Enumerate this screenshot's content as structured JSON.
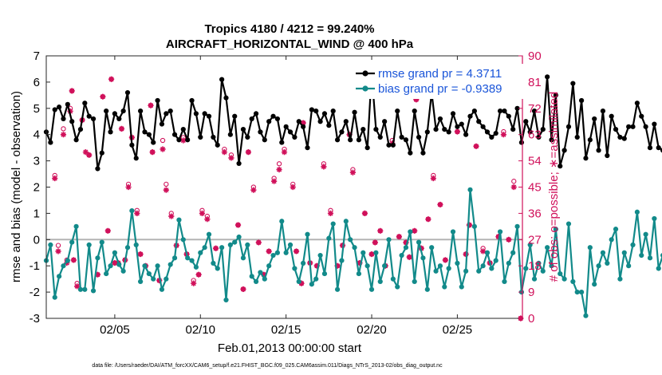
{
  "colors": {
    "rmse": "#000000",
    "bias": "#128a8a",
    "obs": "#d0105a",
    "zero_line": "#b3b3b3",
    "legend_text": "#1a55d9"
  },
  "chart_data": {
    "type": "line",
    "title": "Tropics 4180 / 4212 = 99.240%",
    "subtitle": "AIRCRAFT_HORIZONTAL_WIND @ 400 hPa",
    "xlabel": "Feb.01,2013 00:00:00 start",
    "ylabel_left": "rmse and bias (model - observation)",
    "ylabel_right": "# of obs: o=possible; ∗=assimilated",
    "footer": "data file: /Users/raeder/DAI/ATM_forcXX/CAM6_setup/f.e21.FHIST_BGC.f09_025.CAM6assim.011/Diags_NTrS_2013-02/obs_diag_output.nc",
    "xlim": [
      1,
      28.8
    ],
    "ylim_left": [
      -3,
      7
    ],
    "ylim_right": [
      0,
      90
    ],
    "left_ticks": [
      "-3",
      "-2",
      "-1",
      "0",
      "1",
      "2",
      "3",
      "4",
      "5",
      "6",
      "7"
    ],
    "right_ticks": [
      "0",
      "9",
      "18",
      "27",
      "36",
      "45",
      "54",
      "63",
      "72",
      "81",
      "90"
    ],
    "x_ticks": [
      {
        "value": 5,
        "label": "02/05"
      },
      {
        "value": 10,
        "label": "02/10"
      },
      {
        "value": 15,
        "label": "02/15"
      },
      {
        "value": 20,
        "label": "02/20"
      },
      {
        "value": 25,
        "label": "02/25"
      }
    ],
    "legend": [
      {
        "label": "rmse grand pr = 4.3711",
        "series": "rmse"
      },
      {
        "label": "bias grand pr = -0.9389",
        "series": "bias"
      }
    ],
    "t_start": 1.0,
    "t_step": 0.25,
    "rmse": [
      4.1,
      3.7,
      4.95,
      5.05,
      4.6,
      5.15,
      4.5,
      3.8,
      4.2,
      5.2,
      4.7,
      4.6,
      2.7,
      3.3,
      4.9,
      4.1,
      4.8,
      4.6,
      4.9,
      5.6,
      3.6,
      3.1,
      4.9,
      4.1,
      4.0,
      3.7,
      5.3,
      4.4,
      4.8,
      4.9,
      4.0,
      3.8,
      4.2,
      3.8,
      5.3,
      4.8,
      3.9,
      4.8,
      4.7,
      3.9,
      3.6,
      6.1,
      5.4,
      4.0,
      4.7,
      2.9,
      4.2,
      3.9,
      4.6,
      4.8,
      4.1,
      3.8,
      4.5,
      4.7,
      4.6,
      3.7,
      4.3,
      4.1,
      3.9,
      4.5,
      4.3,
      3.5,
      4.95,
      4.9,
      4.5,
      4.8,
      4.35,
      4.9,
      3.8,
      4.1,
      4.5,
      3.8,
      4.85,
      3.8,
      4.2,
      3.5,
      6.35,
      4.2,
      3.9,
      4.5,
      3.6,
      3.6,
      4.9,
      3.9,
      3.8,
      3.3,
      4.9,
      3.9,
      3.3,
      4.1,
      5.6,
      4.2,
      4.6,
      4.2,
      4.1,
      4.8,
      4.3,
      4.4,
      4.0,
      4.7,
      4.9,
      4.5,
      4.3,
      4.1,
      3.9,
      4.05,
      4.9,
      4.9,
      4.7,
      4.2,
      5.0,
      3.7,
      4.5,
      4.1,
      4.9,
      3.9,
      4.2,
      6.2,
      3.8,
      5.5,
      2.8,
      3.4,
      4.3,
      5.95,
      3.9,
      5.3,
      3.1,
      3.8,
      4.6,
      3.4,
      4.9,
      3.2,
      4.7,
      4.2,
      3.9,
      3.85,
      4.3,
      4.3,
      5.2,
      4.7,
      4.3,
      3.5,
      4.4,
      3.5,
      3.4,
      3.65,
      4.5,
      4.7,
      4.0,
      3.6,
      4.1,
      4.3,
      4.3,
      5.0,
      3.7,
      3.6,
      6.45,
      4.1,
      4.5,
      4.2,
      3.9,
      3.6,
      3.3,
      5.9,
      4.1,
      3.8,
      3.5,
      3.5,
      3.5,
      3.6,
      3.9,
      3.8,
      3.9,
      3.9,
      3.8,
      3.8,
      3.9,
      4.0,
      3.6,
      3.35,
      3.3
    ],
    "bias": [
      -0.8,
      -0.2,
      -2.2,
      -1.4,
      -1.0,
      -0.8,
      -0.1,
      0.5,
      -1.9,
      -1.9,
      -0.2,
      -1.95,
      -0.7,
      -0.1,
      -1.3,
      -1.0,
      -0.5,
      -0.95,
      -1.2,
      -0.3,
      1.1,
      -0.2,
      -1.6,
      -1.0,
      -1.3,
      -1.5,
      -1.0,
      -1.9,
      -1.5,
      -0.95,
      -0.7,
      0.75,
      0.0,
      -0.7,
      -0.8,
      -1.05,
      -0.5,
      -0.3,
      0.2,
      -0.9,
      -1.1,
      -0.3,
      -2.3,
      -0.2,
      -0.1,
      0.1,
      -0.7,
      -0.2,
      -1.4,
      -1.6,
      -1.25,
      -1.5,
      -1.0,
      -0.6,
      -0.5,
      0.7,
      -0.5,
      -0.2,
      -1.1,
      -1.6,
      -0.9,
      0.2,
      -1.7,
      -1.5,
      -0.6,
      -1.3,
      0.05,
      0.6,
      -1.9,
      -0.8,
      0.7,
      0.0,
      -0.3,
      -1.3,
      -0.5,
      -1.0,
      -1.9,
      -0.5,
      -1.6,
      -1.0,
      0.0,
      -1.5,
      -1.8,
      -0.6,
      -0.3,
      0.3,
      -1.6,
      -0.1,
      -0.7,
      -1.9,
      -0.3,
      -1.2,
      -1.0,
      -1.8,
      -1.1,
      0.3,
      -0.9,
      -1.8,
      -1.2,
      1.9,
      0.5,
      -1.2,
      -1.0,
      -0.5,
      -1.1,
      -0.8,
      0.3,
      -1.6,
      -0.9,
      -0.5,
      0.5,
      -2.0,
      -1.1,
      -0.2,
      -1.5,
      -0.9,
      -1.2,
      -0.3,
      -1.0,
      0.4,
      -1.3,
      -1.5,
      0.6,
      -1.6,
      -2.0,
      -2.0,
      -2.9,
      -0.3,
      -1.7,
      -1.0,
      -0.5,
      -0.9,
      0.0,
      0.4,
      -1.5,
      -0.5,
      -1.0,
      -0.2,
      1.05,
      -0.6,
      0.2,
      -0.7,
      0.8,
      -1.1,
      -0.6,
      0.2,
      -0.2,
      -0.8,
      -1.1,
      -0.2,
      -0.4,
      -1.0,
      -1.5,
      -0.9,
      -1.2,
      -1.1,
      -1.1,
      -0.1,
      -1.3,
      -0.3,
      0.2,
      -0.8,
      -0.8,
      -1.5,
      -1.8,
      -1.6,
      0.1,
      -1.3,
      -0.9,
      -0.5,
      -1.0,
      -1.2,
      -1.7,
      -1.9,
      -1.5,
      -0.8,
      -0.8,
      -0.9,
      -0.8,
      -0.9,
      -0.9
    ],
    "obs_possible": [
      [
        1.5,
        49
      ],
      [
        1.7,
        25
      ],
      [
        2.0,
        65
      ],
      [
        2.2,
        20
      ],
      [
        2.4,
        72
      ],
      [
        2.5,
        78
      ],
      [
        2.6,
        20
      ],
      [
        2.8,
        12
      ],
      [
        3.1,
        68
      ],
      [
        3.5,
        56
      ],
      [
        4.0,
        15
      ],
      [
        4.3,
        76
      ],
      [
        4.6,
        30
      ],
      [
        4.8,
        82
      ],
      [
        5.0,
        19
      ],
      [
        5.2,
        19
      ],
      [
        5.4,
        65
      ],
      [
        5.6,
        20
      ],
      [
        5.8,
        46
      ],
      [
        6.0,
        62
      ],
      [
        6.3,
        37
      ],
      [
        6.5,
        22
      ],
      [
        6.8,
        18
      ],
      [
        7.1,
        73
      ],
      [
        7.2,
        57
      ],
      [
        7.6,
        13
      ],
      [
        7.8,
        61
      ],
      [
        8.0,
        46
      ],
      [
        8.3,
        36
      ],
      [
        8.6,
        25
      ],
      [
        9.0,
        62
      ],
      [
        9.2,
        22
      ],
      [
        9.6,
        13
      ],
      [
        9.9,
        15
      ],
      [
        10.1,
        37
      ],
      [
        10.4,
        35
      ],
      [
        10.9,
        24
      ],
      [
        11.4,
        58
      ],
      [
        11.8,
        56
      ],
      [
        12.2,
        32
      ],
      [
        12.5,
        10
      ],
      [
        12.8,
        57
      ],
      [
        13.1,
        45
      ],
      [
        13.4,
        26
      ],
      [
        13.7,
        15
      ],
      [
        14.0,
        23
      ],
      [
        14.3,
        48
      ],
      [
        14.6,
        53
      ],
      [
        14.9,
        58
      ],
      [
        15.4,
        46
      ],
      [
        15.6,
        23
      ],
      [
        15.9,
        12
      ],
      [
        16.0,
        67
      ],
      [
        16.4,
        19
      ],
      [
        16.8,
        18
      ],
      [
        17.2,
        53
      ],
      [
        17.6,
        37
      ],
      [
        18.0,
        18
      ],
      [
        18.3,
        25
      ],
      [
        18.7,
        63
      ],
      [
        18.9,
        51
      ],
      [
        19.3,
        19
      ],
      [
        19.6,
        36
      ],
      [
        20.0,
        22
      ],
      [
        20.2,
        26
      ],
      [
        20.5,
        30
      ],
      [
        20.8,
        18
      ],
      [
        21.2,
        61
      ],
      [
        21.6,
        28
      ],
      [
        22.0,
        26
      ],
      [
        22.2,
        21
      ],
      [
        22.5,
        30
      ],
      [
        22.6,
        75
      ],
      [
        22.9,
        24
      ],
      [
        23.3,
        34
      ],
      [
        23.6,
        49
      ],
      [
        24.0,
        39
      ],
      [
        24.3,
        20
      ],
      [
        24.7,
        82
      ],
      [
        25.0,
        64
      ],
      [
        25.5,
        22
      ],
      [
        25.7,
        32
      ],
      [
        26.1,
        59
      ],
      [
        26.5,
        24
      ],
      [
        26.9,
        19
      ],
      [
        27.4,
        28
      ],
      [
        27.7,
        64
      ],
      [
        28.0,
        27
      ],
      [
        28.3,
        47
      ],
      [
        28.7,
        0
      ]
    ],
    "obs_assimilated": [
      [
        1.5,
        48
      ],
      [
        1.7,
        23
      ],
      [
        2.0,
        63
      ],
      [
        2.2,
        19
      ],
      [
        2.4,
        71
      ],
      [
        2.5,
        78
      ],
      [
        2.6,
        20
      ],
      [
        2.8,
        11
      ],
      [
        3.1,
        68
      ],
      [
        3.3,
        57
      ],
      [
        3.5,
        56
      ],
      [
        4.0,
        15
      ],
      [
        4.3,
        76
      ],
      [
        4.6,
        30
      ],
      [
        4.8,
        82
      ],
      [
        5.0,
        19
      ],
      [
        5.2,
        19
      ],
      [
        5.4,
        65
      ],
      [
        5.6,
        20
      ],
      [
        5.8,
        45
      ],
      [
        6.0,
        62
      ],
      [
        6.3,
        36
      ],
      [
        6.5,
        22
      ],
      [
        6.8,
        18
      ],
      [
        7.1,
        73
      ],
      [
        7.2,
        57
      ],
      [
        7.6,
        13
      ],
      [
        7.8,
        58
      ],
      [
        8.0,
        44
      ],
      [
        8.3,
        35
      ],
      [
        8.6,
        25
      ],
      [
        9.0,
        61
      ],
      [
        9.2,
        22
      ],
      [
        9.6,
        12
      ],
      [
        9.9,
        15
      ],
      [
        10.1,
        36
      ],
      [
        10.4,
        34
      ],
      [
        10.9,
        24
      ],
      [
        11.4,
        57
      ],
      [
        11.8,
        55
      ],
      [
        12.2,
        32
      ],
      [
        12.5,
        10
      ],
      [
        12.8,
        57
      ],
      [
        13.1,
        44
      ],
      [
        13.4,
        26
      ],
      [
        13.7,
        15
      ],
      [
        14.0,
        23
      ],
      [
        14.3,
        47
      ],
      [
        14.6,
        51
      ],
      [
        14.9,
        57
      ],
      [
        15.4,
        45
      ],
      [
        15.6,
        23
      ],
      [
        15.9,
        12
      ],
      [
        16.0,
        67
      ],
      [
        16.4,
        19
      ],
      [
        16.8,
        18
      ],
      [
        17.2,
        52
      ],
      [
        17.6,
        36
      ],
      [
        18.0,
        18
      ],
      [
        18.3,
        25
      ],
      [
        18.7,
        63
      ],
      [
        18.9,
        50
      ],
      [
        19.3,
        19
      ],
      [
        19.6,
        36
      ],
      [
        20.0,
        22
      ],
      [
        20.2,
        26
      ],
      [
        20.5,
        30
      ],
      [
        20.8,
        18
      ],
      [
        21.2,
        60
      ],
      [
        21.6,
        28
      ],
      [
        22.0,
        26
      ],
      [
        22.2,
        21
      ],
      [
        22.5,
        30
      ],
      [
        22.6,
        75
      ],
      [
        22.9,
        24
      ],
      [
        23.3,
        34
      ],
      [
        23.6,
        48
      ],
      [
        24.0,
        39
      ],
      [
        24.3,
        20
      ],
      [
        24.7,
        82
      ],
      [
        25.0,
        64
      ],
      [
        25.5,
        22
      ],
      [
        25.7,
        32
      ],
      [
        26.1,
        59
      ],
      [
        26.5,
        23
      ],
      [
        26.9,
        19
      ],
      [
        27.4,
        28
      ],
      [
        27.7,
        63
      ],
      [
        28.0,
        27
      ],
      [
        28.3,
        45
      ],
      [
        28.7,
        0
      ]
    ]
  }
}
